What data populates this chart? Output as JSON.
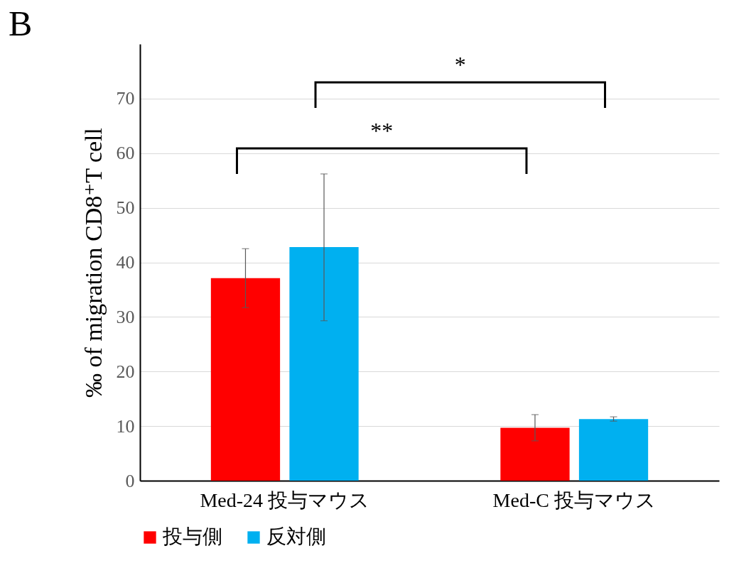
{
  "chart_data": {
    "type": "bar",
    "title": "B",
    "ylabel": "‰ of migration CD8⁺T cell",
    "categories": [
      "Med-24 投与マウス",
      "Med-C 投与マウス"
    ],
    "series": [
      {
        "name": "投与側",
        "color": "#ff0000",
        "values": [
          37.1,
          9.7
        ],
        "errors": [
          [
            31.7,
            42.5
          ],
          [
            7.3,
            12.1
          ]
        ]
      },
      {
        "name": "反対側",
        "color": "#00b0f0",
        "values": [
          42.8,
          11.3
        ],
        "errors": [
          [
            29.3,
            56.2
          ],
          [
            10.9,
            11.7
          ]
        ]
      }
    ],
    "ylim": [
      0,
      80
    ],
    "yticks": [
      0,
      10,
      20,
      30,
      40,
      50,
      60,
      70
    ],
    "grid": "y",
    "legend": "bottom",
    "annotations": [
      "**",
      "*"
    ]
  }
}
